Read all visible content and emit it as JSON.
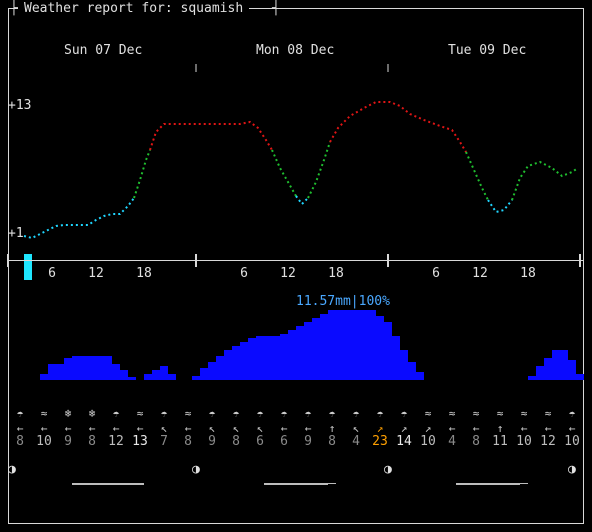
{
  "title": "Weather report for: squamish",
  "days": [
    "Sun 07 Dec",
    "Mon 08 Dec",
    "Tue 09 Dec"
  ],
  "temp_axis": {
    "max_label": "+13",
    "min_label": "+1"
  },
  "hour_labels": [
    "6",
    "12",
    "18",
    "6",
    "12",
    "18",
    "6",
    "12",
    "18"
  ],
  "rain_label": "11.57mm|100%",
  "temp_colors": {
    "cold": "#1fd6ff",
    "mid": "#1fbf2f",
    "warm": "#e01515"
  },
  "rain_color": "#0a0aff",
  "now_marker_color": "#1fe6ff",
  "weather_symbols": [
    "cloud-rain-icon",
    "drizzle-icon",
    "snowflake-icon",
    "snowflake-icon",
    "cloud-rain-icon",
    "drizzle-icon",
    "cloud-rain-icon",
    "drizzle-icon",
    "cloud-rain-icon",
    "cloud-rain-icon",
    "cloud-rain-icon",
    "cloud-rain-icon",
    "cloud-rain-icon",
    "cloud-rain-icon",
    "cloud-rain-icon",
    "cloud-rain-icon",
    "cloud-rain-icon",
    "drizzle-icon",
    "drizzle-icon",
    "drizzle-icon",
    "drizzle-icon",
    "drizzle-icon",
    "drizzle-icon",
    "cloud-rain-icon"
  ],
  "wind": {
    "arrows": [
      "←",
      "←",
      "←",
      "←",
      "←",
      "←",
      "↖",
      "←",
      "↖",
      "↖",
      "↖",
      "←",
      "←",
      "↑",
      "↖",
      "↗",
      "↗",
      "↗",
      "←",
      "←",
      "↑",
      "←",
      "←",
      "←"
    ],
    "speeds": [
      "8",
      "10",
      "9",
      "8",
      "12",
      "13",
      "7",
      "8",
      "9",
      "8",
      "6",
      "6",
      "9",
      "8",
      "4",
      "23",
      "14",
      "10",
      "4",
      "8",
      "11",
      "10",
      "12",
      "10"
    ],
    "speed_colors": [
      "#8a8a8a",
      "#bdbdbd",
      "#8a8a8a",
      "#8a8a8a",
      "#bdbdbd",
      "#e8e8e8",
      "#8a8a8a",
      "#8a8a8a",
      "#8a8a8a",
      "#8a8a8a",
      "#8a8a8a",
      "#8a8a8a",
      "#8a8a8a",
      "#8a8a8a",
      "#8a8a8a",
      "#ffa000",
      "#e8e8e8",
      "#bdbdbd",
      "#8a8a8a",
      "#8a8a8a",
      "#bdbdbd",
      "#bdbdbd",
      "#bdbdbd",
      "#bdbdbd"
    ]
  },
  "moon_symbol": "◑"
}
